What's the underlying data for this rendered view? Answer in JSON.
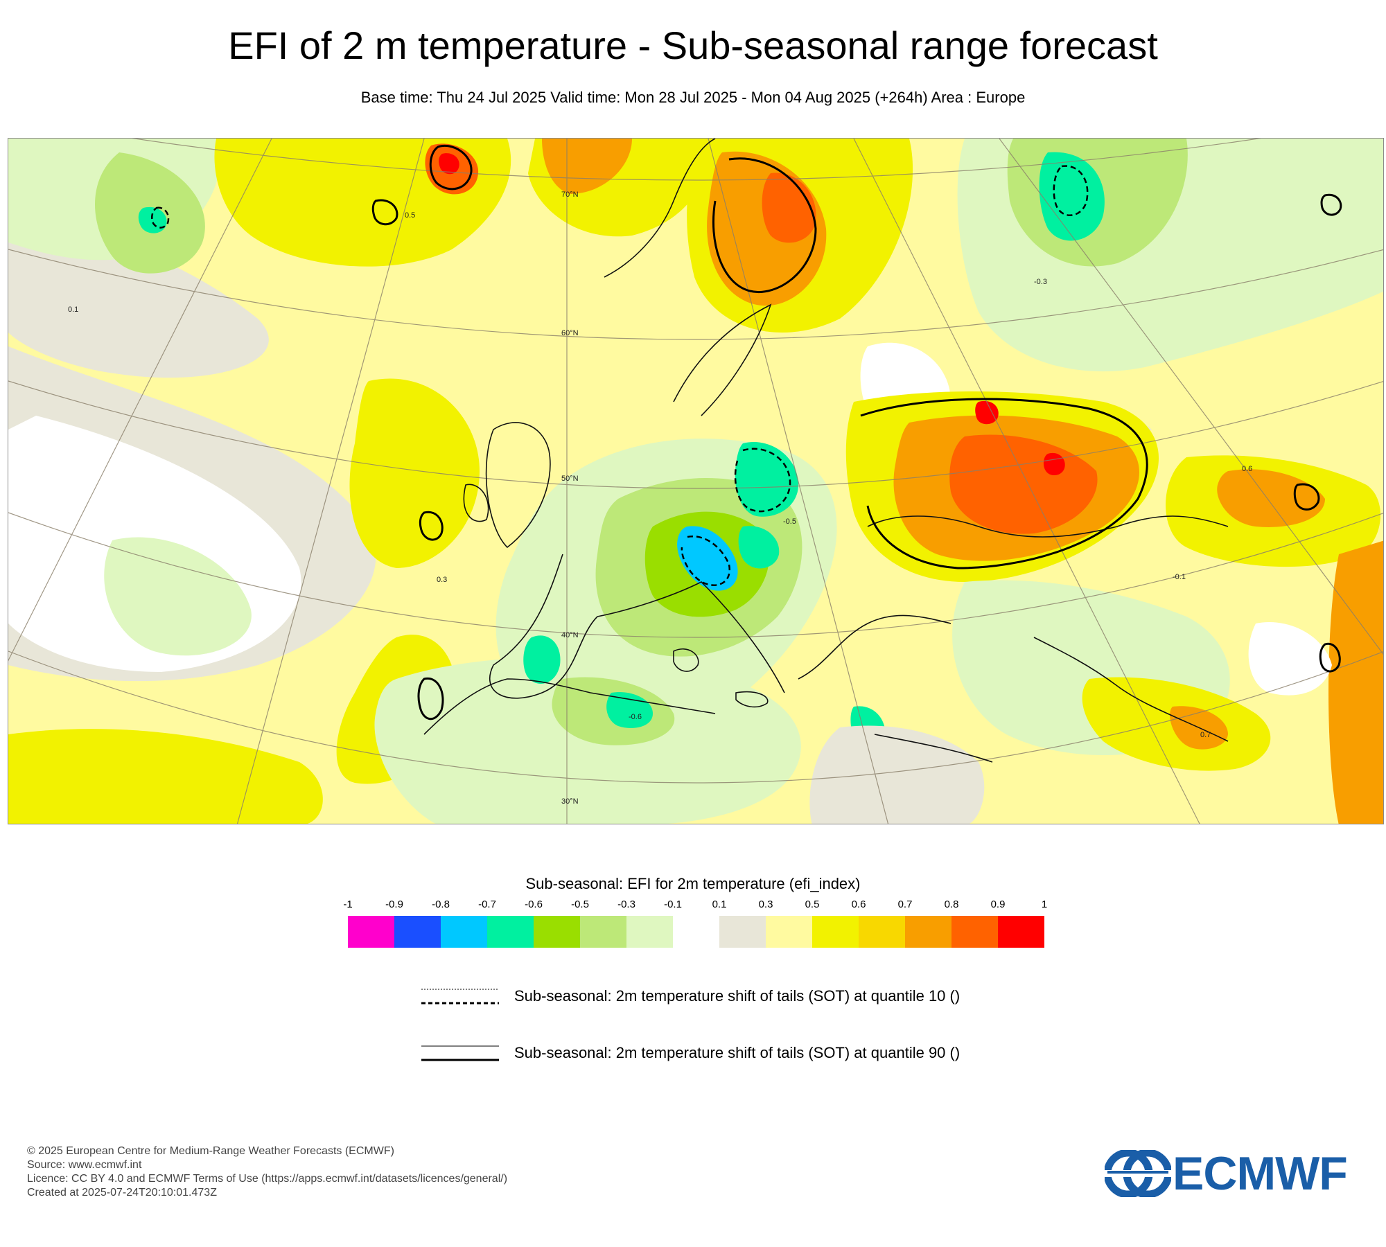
{
  "header": {
    "title": "EFI of 2 m temperature - Sub-seasonal range forecast",
    "subtitle": "Base time: Thu 24 Jul 2025 Valid time: Mon 28 Jul 2025 - Mon 04 Aug 2025 (+264h) Area : Europe"
  },
  "map": {
    "region": "Europe",
    "latitude_labels": [
      "70°N",
      "60°N",
      "50°N",
      "40°N",
      "30°N"
    ],
    "contour_labels": [
      "0.5",
      "0.3",
      "0.1",
      "-0.1",
      "-0.3",
      "-0.5",
      "0.6",
      "0.7",
      "-0.6"
    ]
  },
  "legend": {
    "title": "Sub-seasonal: EFI for 2m temperature (efi_index)",
    "tick_labels": [
      "-1",
      "-0.9",
      "-0.8",
      "-0.7",
      "-0.6",
      "-0.5",
      "-0.3",
      "-0.1",
      "0.1",
      "0.3",
      "0.5",
      "0.6",
      "0.7",
      "0.8",
      "0.9",
      "1"
    ],
    "colors": [
      "#ff00cc",
      "#1a4fff",
      "#00c8ff",
      "#00f0a0",
      "#9ade00",
      "#bde878",
      "#dff7c0",
      "#ffffff",
      "#e8e6d8",
      "#fffaa0",
      "#f2f200",
      "#f8d800",
      "#f89e00",
      "#ff6200",
      "#ff0000"
    ],
    "sot": [
      {
        "style": "dashed",
        "label": "Sub-seasonal: 2m temperature shift of tails (SOT) at quantile 10 ()"
      },
      {
        "style": "solid",
        "label": "Sub-seasonal: 2m temperature shift of tails (SOT) at quantile 90 ()"
      }
    ]
  },
  "footer": {
    "lines": [
      "© 2025 European Centre for Medium-Range Weather Forecasts (ECMWF)",
      "Source: www.ecmwf.int",
      "Licence: CC BY 4.0 and ECMWF Terms of Use (https://apps.ecmwf.int/datasets/licences/general/)",
      "Created at 2025-07-24T20:10:01.473Z"
    ],
    "logo_text": "ECMWF",
    "logo_color": "#1a5ea8"
  }
}
